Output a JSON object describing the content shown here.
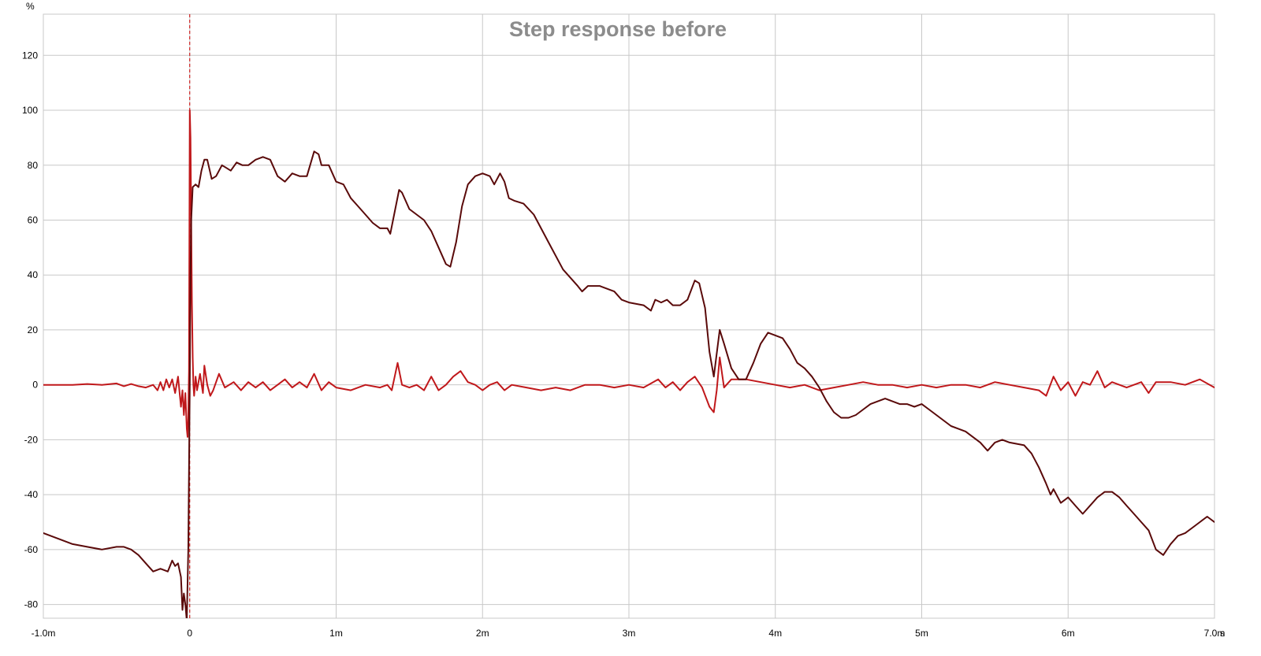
{
  "chart_data": {
    "type": "line",
    "title": "Step response before",
    "ylabel": "%",
    "xunit": "s",
    "xlim": [
      -1.0,
      7.0
    ],
    "ylim": [
      -85,
      135
    ],
    "grid": true,
    "x_ticks": [
      {
        "value": -1.0,
        "label": "-1.0m"
      },
      {
        "value": 0,
        "label": "0"
      },
      {
        "value": 1,
        "label": "1m"
      },
      {
        "value": 2,
        "label": "2m"
      },
      {
        "value": 3,
        "label": "3m"
      },
      {
        "value": 4,
        "label": "4m"
      },
      {
        "value": 5,
        "label": "5m"
      },
      {
        "value": 6,
        "label": "6m"
      },
      {
        "value": 7.0,
        "label": "7.0m"
      }
    ],
    "y_ticks": [
      {
        "value": 120,
        "label": "120"
      },
      {
        "value": 100,
        "label": "100"
      },
      {
        "value": 80,
        "label": "80"
      },
      {
        "value": 60,
        "label": "60"
      },
      {
        "value": 40,
        "label": "40"
      },
      {
        "value": 20,
        "label": "20"
      },
      {
        "value": 0,
        "label": "0"
      },
      {
        "value": -20,
        "label": "-20"
      },
      {
        "value": -40,
        "label": "-40"
      },
      {
        "value": -60,
        "label": "-60"
      },
      {
        "value": -80,
        "label": "-80"
      }
    ],
    "cursor": {
      "x": 0.0,
      "color": "#cc0000"
    },
    "series": [
      {
        "color": "#c0181b",
        "stroke_width": 2,
        "points": [
          [
            -1.0,
            0
          ],
          [
            -0.9,
            0
          ],
          [
            -0.8,
            0
          ],
          [
            -0.7,
            0.3
          ],
          [
            -0.6,
            0
          ],
          [
            -0.5,
            0.5
          ],
          [
            -0.45,
            -0.5
          ],
          [
            -0.4,
            0.3
          ],
          [
            -0.35,
            -0.5
          ],
          [
            -0.3,
            -1
          ],
          [
            -0.25,
            0
          ],
          [
            -0.22,
            -2
          ],
          [
            -0.2,
            1
          ],
          [
            -0.18,
            -2
          ],
          [
            -0.16,
            2
          ],
          [
            -0.14,
            -1
          ],
          [
            -0.12,
            2
          ],
          [
            -0.1,
            -3
          ],
          [
            -0.08,
            3
          ],
          [
            -0.06,
            -8
          ],
          [
            -0.05,
            -2
          ],
          [
            -0.04,
            -11
          ],
          [
            -0.03,
            -3
          ],
          [
            -0.02,
            -16
          ],
          [
            -0.015,
            -19
          ],
          [
            -0.01,
            -12
          ],
          [
            -0.005,
            5
          ],
          [
            0.0,
            100
          ],
          [
            0.005,
            90
          ],
          [
            0.01,
            60
          ],
          [
            0.015,
            30
          ],
          [
            0.02,
            10
          ],
          [
            0.025,
            0
          ],
          [
            0.03,
            -4
          ],
          [
            0.04,
            3
          ],
          [
            0.05,
            -2
          ],
          [
            0.07,
            4
          ],
          [
            0.09,
            -3
          ],
          [
            0.1,
            7
          ],
          [
            0.12,
            0
          ],
          [
            0.14,
            -4
          ],
          [
            0.16,
            -2
          ],
          [
            0.2,
            4
          ],
          [
            0.24,
            -1
          ],
          [
            0.3,
            1
          ],
          [
            0.35,
            -2
          ],
          [
            0.4,
            1
          ],
          [
            0.45,
            -1
          ],
          [
            0.5,
            1
          ],
          [
            0.55,
            -2
          ],
          [
            0.6,
            0
          ],
          [
            0.65,
            2
          ],
          [
            0.7,
            -1
          ],
          [
            0.75,
            1
          ],
          [
            0.8,
            -1
          ],
          [
            0.85,
            4
          ],
          [
            0.9,
            -2
          ],
          [
            0.95,
            1
          ],
          [
            1.0,
            -1
          ],
          [
            1.1,
            -2
          ],
          [
            1.2,
            0
          ],
          [
            1.3,
            -1
          ],
          [
            1.35,
            0
          ],
          [
            1.38,
            -2
          ],
          [
            1.42,
            8
          ],
          [
            1.45,
            0
          ],
          [
            1.5,
            -1
          ],
          [
            1.55,
            0
          ],
          [
            1.6,
            -2
          ],
          [
            1.65,
            3
          ],
          [
            1.7,
            -2
          ],
          [
            1.75,
            0
          ],
          [
            1.8,
            3
          ],
          [
            1.85,
            5
          ],
          [
            1.9,
            1
          ],
          [
            1.95,
            0
          ],
          [
            2.0,
            -2
          ],
          [
            2.05,
            0
          ],
          [
            2.1,
            1
          ],
          [
            2.15,
            -2
          ],
          [
            2.2,
            0
          ],
          [
            2.3,
            -1
          ],
          [
            2.4,
            -2
          ],
          [
            2.5,
            -1
          ],
          [
            2.6,
            -2
          ],
          [
            2.7,
            0
          ],
          [
            2.8,
            0
          ],
          [
            2.9,
            -1
          ],
          [
            3.0,
            0
          ],
          [
            3.1,
            -1
          ],
          [
            3.2,
            2
          ],
          [
            3.25,
            -1
          ],
          [
            3.3,
            1
          ],
          [
            3.35,
            -2
          ],
          [
            3.4,
            1
          ],
          [
            3.45,
            3
          ],
          [
            3.5,
            -1
          ],
          [
            3.55,
            -8
          ],
          [
            3.58,
            -10
          ],
          [
            3.6,
            -2
          ],
          [
            3.62,
            10
          ],
          [
            3.65,
            -1
          ],
          [
            3.7,
            2
          ],
          [
            3.8,
            2
          ],
          [
            3.9,
            1
          ],
          [
            4.0,
            0
          ],
          [
            4.1,
            -1
          ],
          [
            4.2,
            0
          ],
          [
            4.3,
            -2
          ],
          [
            4.4,
            -1
          ],
          [
            4.5,
            0
          ],
          [
            4.6,
            1
          ],
          [
            4.7,
            0
          ],
          [
            4.8,
            0
          ],
          [
            4.9,
            -1
          ],
          [
            5.0,
            0
          ],
          [
            5.1,
            -1
          ],
          [
            5.2,
            0
          ],
          [
            5.3,
            0
          ],
          [
            5.4,
            -1
          ],
          [
            5.5,
            1
          ],
          [
            5.6,
            0
          ],
          [
            5.7,
            -1
          ],
          [
            5.8,
            -2
          ],
          [
            5.85,
            -4
          ],
          [
            5.9,
            3
          ],
          [
            5.95,
            -2
          ],
          [
            6.0,
            1
          ],
          [
            6.05,
            -4
          ],
          [
            6.1,
            1
          ],
          [
            6.15,
            0
          ],
          [
            6.2,
            5
          ],
          [
            6.25,
            -1
          ],
          [
            6.3,
            1
          ],
          [
            6.4,
            -1
          ],
          [
            6.5,
            1
          ],
          [
            6.55,
            -3
          ],
          [
            6.6,
            1
          ],
          [
            6.7,
            1
          ],
          [
            6.8,
            0
          ],
          [
            6.9,
            2
          ],
          [
            7.0,
            -1
          ]
        ]
      },
      {
        "color": "#5a0a0a",
        "stroke_width": 2,
        "points": [
          [
            -1.0,
            -54
          ],
          [
            -0.9,
            -56
          ],
          [
            -0.8,
            -58
          ],
          [
            -0.7,
            -59
          ],
          [
            -0.6,
            -60
          ],
          [
            -0.5,
            -59
          ],
          [
            -0.45,
            -59
          ],
          [
            -0.4,
            -60
          ],
          [
            -0.35,
            -62
          ],
          [
            -0.3,
            -65
          ],
          [
            -0.25,
            -68
          ],
          [
            -0.2,
            -67
          ],
          [
            -0.15,
            -68
          ],
          [
            -0.12,
            -64
          ],
          [
            -0.1,
            -66
          ],
          [
            -0.08,
            -65
          ],
          [
            -0.06,
            -70
          ],
          [
            -0.05,
            -82
          ],
          [
            -0.04,
            -76
          ],
          [
            -0.03,
            -80
          ],
          [
            -0.02,
            -86
          ],
          [
            -0.01,
            -60
          ],
          [
            0.0,
            0
          ],
          [
            0.005,
            40
          ],
          [
            0.01,
            60
          ],
          [
            0.02,
            72
          ],
          [
            0.04,
            73
          ],
          [
            0.06,
            72
          ],
          [
            0.08,
            78
          ],
          [
            0.1,
            82
          ],
          [
            0.12,
            82
          ],
          [
            0.15,
            75
          ],
          [
            0.18,
            76
          ],
          [
            0.22,
            80
          ],
          [
            0.25,
            79
          ],
          [
            0.28,
            78
          ],
          [
            0.32,
            81
          ],
          [
            0.36,
            80
          ],
          [
            0.4,
            80
          ],
          [
            0.45,
            82
          ],
          [
            0.5,
            83
          ],
          [
            0.55,
            82
          ],
          [
            0.6,
            76
          ],
          [
            0.65,
            74
          ],
          [
            0.7,
            77
          ],
          [
            0.75,
            76
          ],
          [
            0.8,
            76
          ],
          [
            0.85,
            85
          ],
          [
            0.88,
            84
          ],
          [
            0.9,
            80
          ],
          [
            0.95,
            80
          ],
          [
            1.0,
            74
          ],
          [
            1.05,
            73
          ],
          [
            1.1,
            68
          ],
          [
            1.15,
            65
          ],
          [
            1.2,
            62
          ],
          [
            1.25,
            59
          ],
          [
            1.3,
            57
          ],
          [
            1.35,
            57
          ],
          [
            1.37,
            55
          ],
          [
            1.4,
            63
          ],
          [
            1.43,
            71
          ],
          [
            1.45,
            70
          ],
          [
            1.5,
            64
          ],
          [
            1.55,
            62
          ],
          [
            1.6,
            60
          ],
          [
            1.65,
            56
          ],
          [
            1.7,
            50
          ],
          [
            1.75,
            44
          ],
          [
            1.78,
            43
          ],
          [
            1.82,
            52
          ],
          [
            1.86,
            65
          ],
          [
            1.9,
            73
          ],
          [
            1.95,
            76
          ],
          [
            2.0,
            77
          ],
          [
            2.05,
            76
          ],
          [
            2.08,
            73
          ],
          [
            2.12,
            77
          ],
          [
            2.15,
            74
          ],
          [
            2.18,
            68
          ],
          [
            2.22,
            67
          ],
          [
            2.28,
            66
          ],
          [
            2.35,
            62
          ],
          [
            2.45,
            52
          ],
          [
            2.55,
            42
          ],
          [
            2.65,
            36
          ],
          [
            2.68,
            34
          ],
          [
            2.72,
            36
          ],
          [
            2.8,
            36
          ],
          [
            2.9,
            34
          ],
          [
            2.95,
            31
          ],
          [
            3.0,
            30
          ],
          [
            3.1,
            29
          ],
          [
            3.15,
            27
          ],
          [
            3.18,
            31
          ],
          [
            3.22,
            30
          ],
          [
            3.26,
            31
          ],
          [
            3.3,
            29
          ],
          [
            3.35,
            29
          ],
          [
            3.4,
            31
          ],
          [
            3.45,
            38
          ],
          [
            3.48,
            37
          ],
          [
            3.52,
            28
          ],
          [
            3.55,
            12
          ],
          [
            3.58,
            3
          ],
          [
            3.62,
            20
          ],
          [
            3.65,
            15
          ],
          [
            3.7,
            6
          ],
          [
            3.75,
            2
          ],
          [
            3.8,
            2
          ],
          [
            3.85,
            8
          ],
          [
            3.9,
            15
          ],
          [
            3.95,
            19
          ],
          [
            4.0,
            18
          ],
          [
            4.05,
            17
          ],
          [
            4.1,
            13
          ],
          [
            4.15,
            8
          ],
          [
            4.2,
            6
          ],
          [
            4.25,
            3
          ],
          [
            4.3,
            -1
          ],
          [
            4.35,
            -6
          ],
          [
            4.4,
            -10
          ],
          [
            4.45,
            -12
          ],
          [
            4.5,
            -12
          ],
          [
            4.55,
            -11
          ],
          [
            4.6,
            -9
          ],
          [
            4.65,
            -7
          ],
          [
            4.7,
            -6
          ],
          [
            4.75,
            -5
          ],
          [
            4.8,
            -6
          ],
          [
            4.85,
            -7
          ],
          [
            4.9,
            -7
          ],
          [
            4.95,
            -8
          ],
          [
            5.0,
            -7
          ],
          [
            5.05,
            -9
          ],
          [
            5.1,
            -11
          ],
          [
            5.15,
            -13
          ],
          [
            5.2,
            -15
          ],
          [
            5.25,
            -16
          ],
          [
            5.3,
            -17
          ],
          [
            5.35,
            -19
          ],
          [
            5.4,
            -21
          ],
          [
            5.45,
            -24
          ],
          [
            5.5,
            -21
          ],
          [
            5.55,
            -20
          ],
          [
            5.6,
            -21
          ],
          [
            5.7,
            -22
          ],
          [
            5.75,
            -25
          ],
          [
            5.8,
            -30
          ],
          [
            5.85,
            -36
          ],
          [
            5.88,
            -40
          ],
          [
            5.9,
            -38
          ],
          [
            5.95,
            -43
          ],
          [
            6.0,
            -41
          ],
          [
            6.05,
            -44
          ],
          [
            6.1,
            -47
          ],
          [
            6.15,
            -44
          ],
          [
            6.2,
            -41
          ],
          [
            6.25,
            -39
          ],
          [
            6.3,
            -39
          ],
          [
            6.35,
            -41
          ],
          [
            6.4,
            -44
          ],
          [
            6.45,
            -47
          ],
          [
            6.5,
            -50
          ],
          [
            6.55,
            -53
          ],
          [
            6.6,
            -60
          ],
          [
            6.65,
            -62
          ],
          [
            6.7,
            -58
          ],
          [
            6.75,
            -55
          ],
          [
            6.8,
            -54
          ],
          [
            6.85,
            -52
          ],
          [
            6.9,
            -50
          ],
          [
            6.95,
            -48
          ],
          [
            7.0,
            -50
          ]
        ]
      }
    ]
  }
}
